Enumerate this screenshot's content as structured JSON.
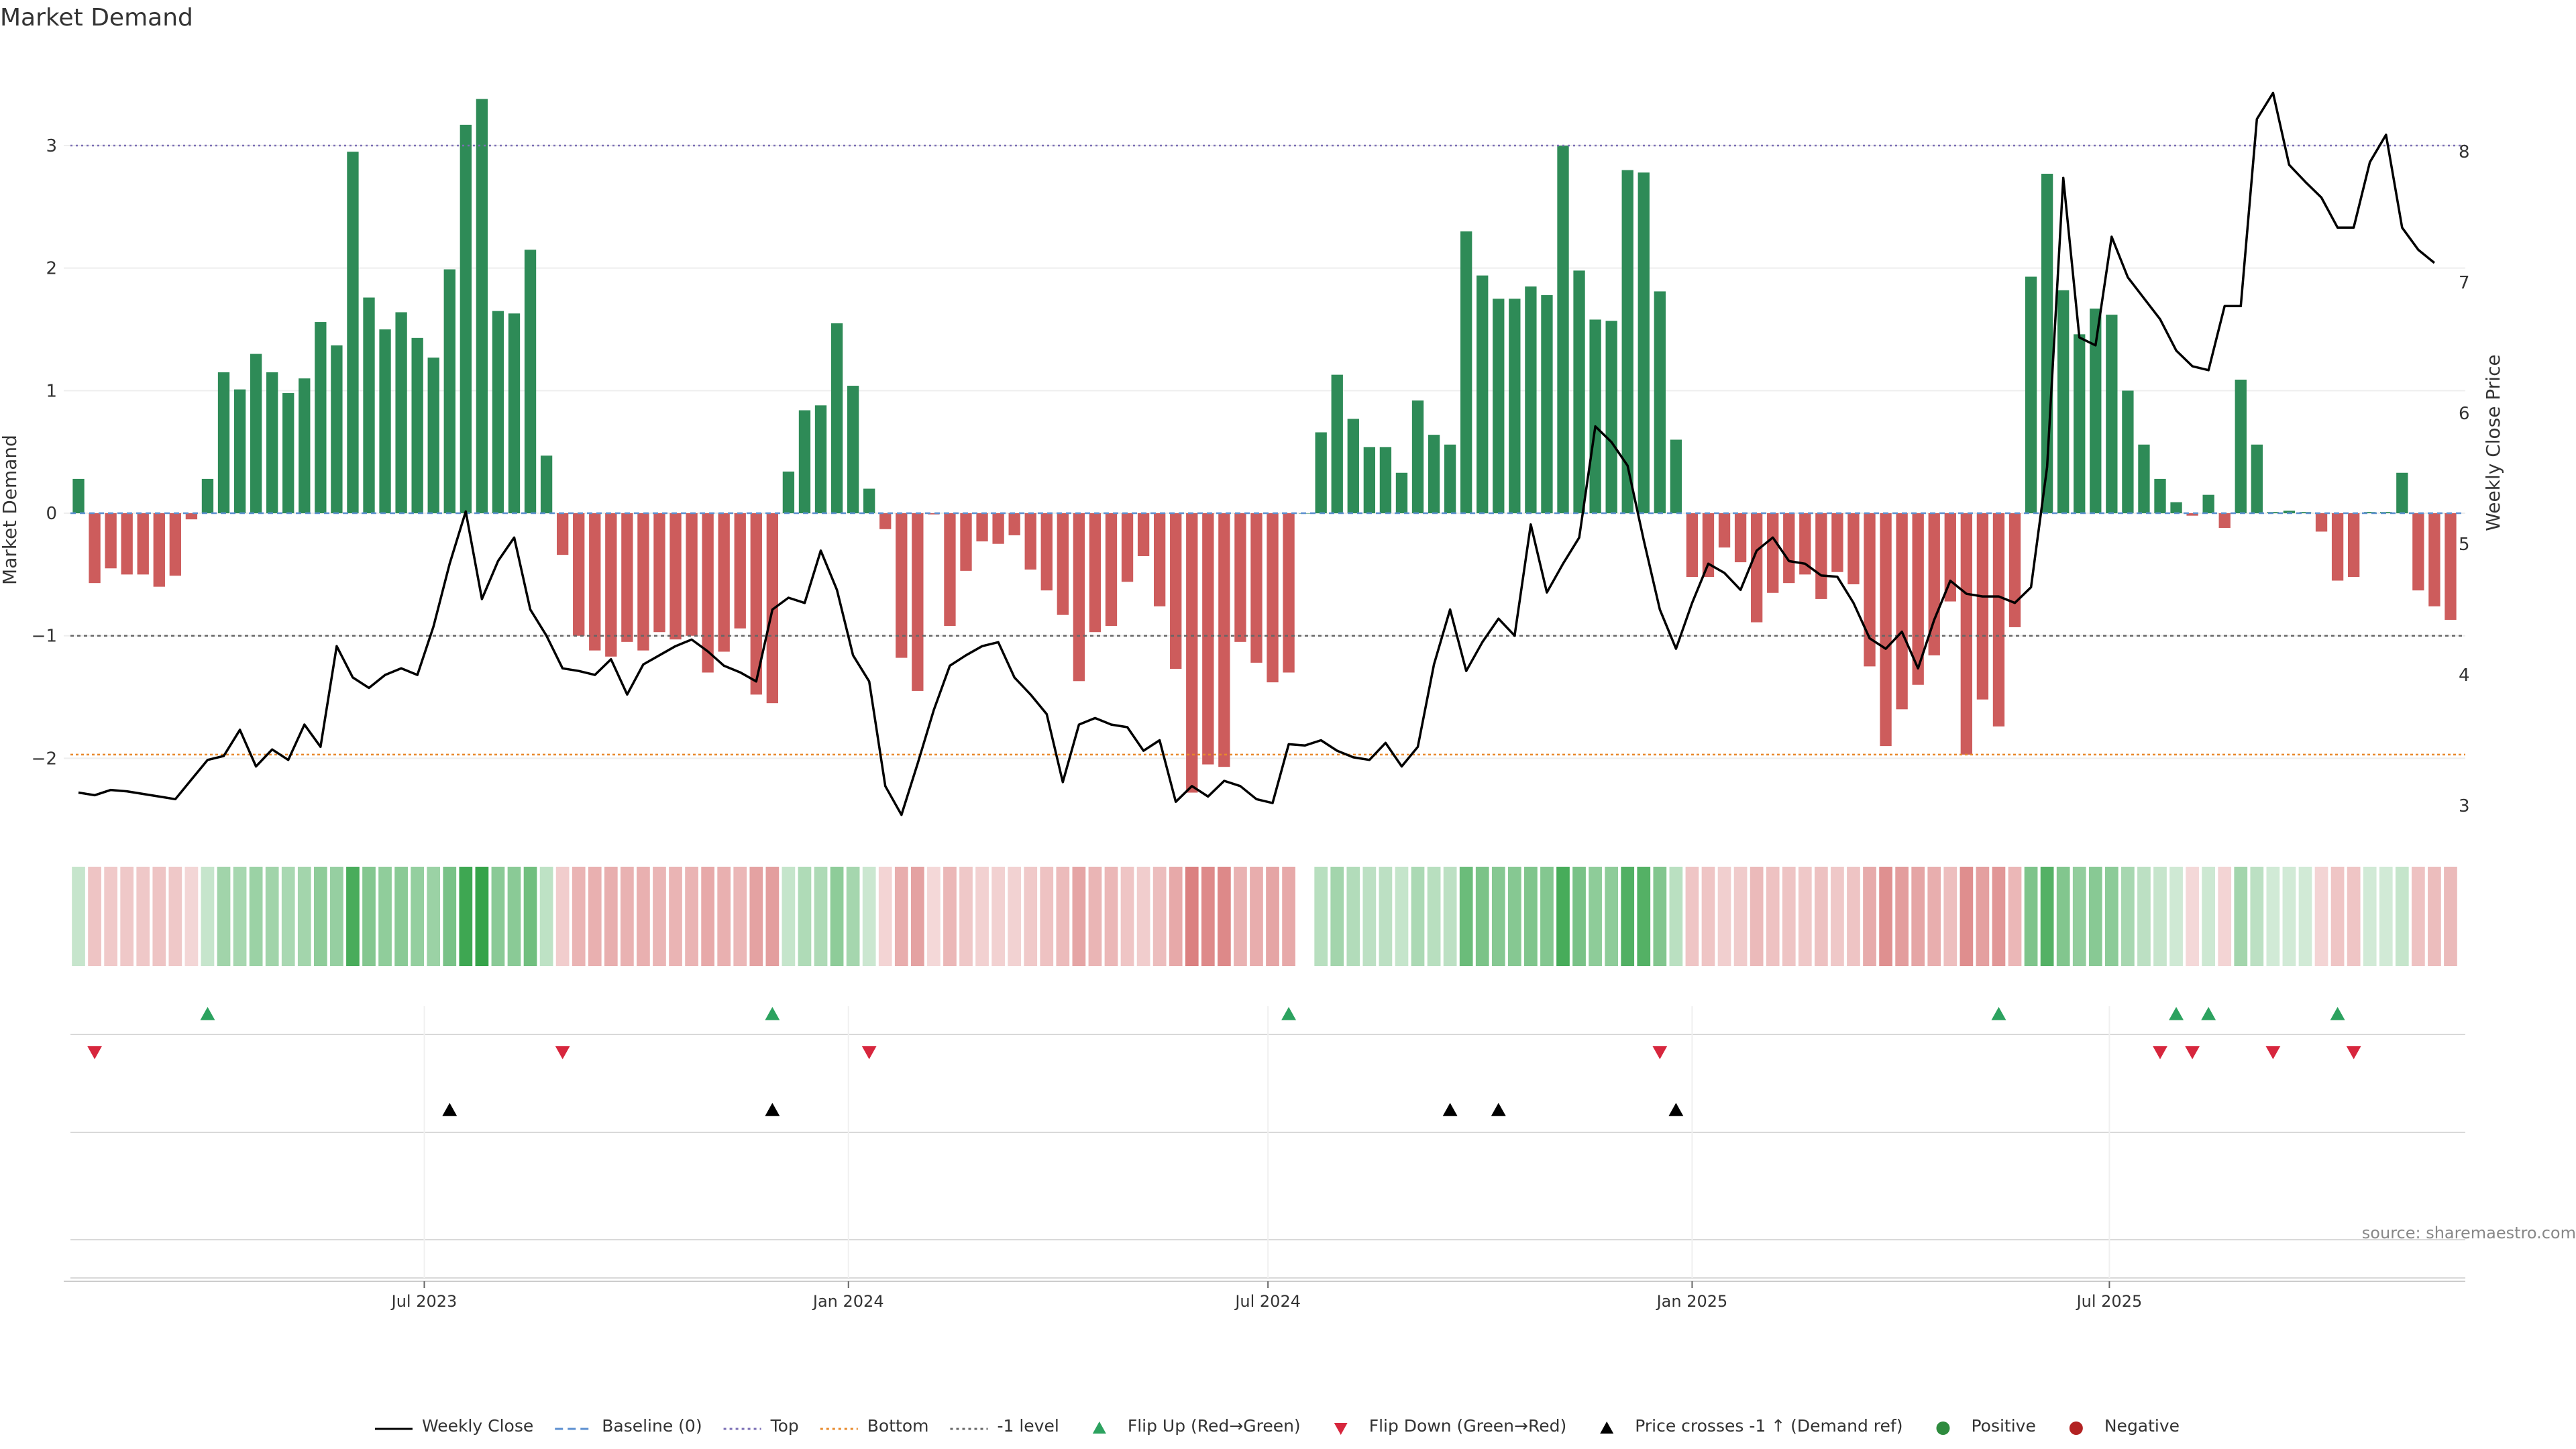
{
  "chart_data": {
    "type": "bar",
    "title": "Market Demand",
    "ylabel": "Market Demand",
    "y2label": "Weekly Close Price",
    "ylim": [
      -2.6,
      3.75
    ],
    "y2lim": [
      2.8,
      8.75
    ],
    "yticks": [
      -2,
      -1,
      0,
      1,
      2,
      3
    ],
    "y2ticks": [
      3,
      4,
      5,
      6,
      7,
      8
    ],
    "x_start": "2023-02-01",
    "x_interval_days": 7,
    "xticks": [
      {
        "date": "2023-07-01",
        "label": "Jul 2023"
      },
      {
        "date": "2024-01-01",
        "label": "Jan 2024"
      },
      {
        "date": "2024-07-01",
        "label": "Jul 2024"
      },
      {
        "date": "2025-01-01",
        "label": "Jan 2025"
      },
      {
        "date": "2025-07-01",
        "label": "Jul 2025"
      }
    ],
    "reference_lines": [
      {
        "name": "Top",
        "value": 3.0,
        "color": "#7b6fb5",
        "dash": "3,5"
      },
      {
        "name": "-1 level",
        "value": -1.0,
        "color": "#666666",
        "dash": "5,5"
      },
      {
        "name": "Bottom",
        "value": -1.97,
        "color": "#e8882a",
        "dash": "4,4"
      },
      {
        "name": "Baseline (0)",
        "value": 0,
        "color": "#5b8fd0",
        "dash": "8,6"
      }
    ],
    "series": [
      {
        "name": "Market Demand",
        "kind": "bar",
        "values": [
          0.28,
          -0.57,
          -0.45,
          -0.5,
          -0.5,
          -0.6,
          -0.51,
          -0.05,
          0.28,
          1.15,
          1.01,
          1.3,
          1.15,
          0.98,
          1.1,
          1.56,
          1.37,
          2.95,
          1.76,
          1.5,
          1.64,
          1.43,
          1.27,
          1.99,
          3.17,
          3.38,
          1.65,
          1.63,
          2.15,
          0.47,
          -0.34,
          -1.0,
          -1.12,
          -1.17,
          -1.05,
          -1.12,
          -0.97,
          -1.03,
          -1.0,
          -1.3,
          -1.13,
          -0.94,
          -1.48,
          -1.55,
          0.34,
          0.84,
          0.88,
          1.55,
          1.04,
          0.2,
          -0.13,
          -1.18,
          -1.45,
          -0.01,
          -0.92,
          -0.47,
          -0.23,
          -0.25,
          -0.18,
          -0.46,
          -0.63,
          -0.83,
          -1.37,
          -0.97,
          -0.92,
          -0.56,
          -0.35,
          -0.76,
          -1.27,
          -2.28,
          -2.05,
          -2.07,
          -1.05,
          -1.22,
          -1.38,
          -1.3,
          0,
          0.66,
          1.13,
          0.77,
          0.54,
          0.54,
          0.33,
          0.92,
          0.64,
          0.56,
          2.3,
          1.94,
          1.75,
          1.75,
          1.85,
          1.78,
          3.0,
          1.98,
          1.58,
          1.57,
          2.8,
          2.78,
          1.81,
          0.6,
          -0.52,
          -0.52,
          -0.28,
          -0.4,
          -0.89,
          -0.65,
          -0.57,
          -0.5,
          -0.7,
          -0.48,
          -0.58,
          -1.25,
          -1.9,
          -1.6,
          -1.4,
          -1.16,
          -0.72,
          -1.97,
          -1.52,
          -1.74,
          -0.93,
          1.93,
          2.77,
          1.82,
          1.46,
          1.67,
          1.62,
          1.0,
          0.56,
          0.28,
          0.09,
          -0.02,
          0.15,
          -0.12,
          1.09,
          0.56,
          0.01,
          0.02,
          0.01,
          -0.15,
          -0.55,
          -0.52,
          0.01,
          0.01,
          0.33,
          -0.63,
          -0.76,
          -0.87
        ]
      },
      {
        "name": "Weekly Close",
        "kind": "line",
        "axis": "right",
        "values": [
          3.1,
          3.08,
          3.12,
          3.11,
          3.09,
          3.07,
          3.05,
          3.2,
          3.35,
          3.38,
          3.58,
          3.3,
          3.43,
          3.35,
          3.62,
          3.45,
          4.22,
          3.98,
          3.9,
          4.0,
          4.05,
          4.0,
          4.37,
          4.85,
          5.25,
          4.58,
          4.87,
          5.05,
          4.5,
          4.3,
          4.05,
          4.03,
          4.0,
          4.12,
          3.85,
          4.08,
          4.15,
          4.22,
          4.27,
          4.18,
          4.07,
          4.02,
          3.95,
          4.5,
          4.59,
          4.55,
          4.95,
          4.65,
          4.15,
          3.95,
          3.15,
          2.93,
          3.32,
          3.73,
          4.07,
          4.15,
          4.22,
          4.25,
          3.98,
          3.85,
          3.7,
          3.18,
          3.62,
          3.67,
          3.62,
          3.6,
          3.42,
          3.5,
          3.03,
          3.15,
          3.07,
          3.19,
          3.15,
          3.05,
          3.02,
          3.47,
          3.46,
          3.5,
          3.42,
          3.37,
          3.35,
          3.48,
          3.3,
          3.45,
          4.08,
          4.5,
          4.03,
          4.25,
          4.43,
          4.3,
          5.15,
          4.63,
          4.85,
          5.05,
          5.9,
          5.78,
          5.6,
          5.03,
          4.5,
          4.2,
          4.55,
          4.85,
          4.78,
          4.65,
          4.95,
          5.05,
          4.87,
          4.85,
          4.76,
          4.75,
          4.55,
          4.28,
          4.2,
          4.33,
          4.05,
          4.42,
          4.72,
          4.62,
          4.6,
          4.6,
          4.55,
          4.67,
          5.59,
          7.8,
          6.58,
          6.52,
          7.35,
          7.04,
          6.88,
          6.72,
          6.48,
          6.36,
          6.33,
          6.82,
          6.82,
          8.25,
          8.45,
          7.9,
          7.77,
          7.65,
          7.42,
          7.42,
          7.92,
          8.13,
          7.42,
          7.25,
          7.15
        ]
      }
    ],
    "strip": {
      "name": "Demand intensity strip",
      "colors": {
        "positive": "#2ea043",
        "negative": "#cc4c4c"
      }
    },
    "events": {
      "flip_up": [
        8,
        43,
        75,
        119,
        130,
        132,
        140
      ],
      "flip_down": [
        1,
        30,
        49,
        98,
        129,
        131,
        136,
        141
      ],
      "price_cross": [
        23,
        43,
        85,
        88,
        99
      ],
      "colors": {
        "flip_up": "#2ca25f",
        "flip_down": "#d7263d",
        "price_cross": "#000000"
      }
    },
    "legend": {
      "position": "bottom-center",
      "entries": [
        {
          "label": "Weekly Close",
          "symbol": "line",
          "color": "#000000"
        },
        {
          "label": "Baseline (0)",
          "symbol": "dash",
          "color": "#5b8fd0"
        },
        {
          "label": "Top",
          "symbol": "dot",
          "color": "#7b6fb5"
        },
        {
          "label": "Bottom",
          "symbol": "dot",
          "color": "#e8882a"
        },
        {
          "label": "-1 level",
          "symbol": "dot",
          "color": "#666666"
        },
        {
          "label": "Flip Up (Red→Green)",
          "symbol": "tri-up",
          "color": "#2ca25f"
        },
        {
          "label": "Flip Down (Green→Red)",
          "symbol": "tri-down",
          "color": "#d7263d"
        },
        {
          "label": "Price crosses -1 ↑ (Demand ref)",
          "symbol": "tri-up",
          "color": "#000000"
        },
        {
          "label": "Positive",
          "symbol": "circle",
          "color": "#2e8b3e"
        },
        {
          "label": "Negative",
          "symbol": "circle",
          "color": "#b22222"
        }
      ]
    },
    "source": "source: sharemaestro.com",
    "colors": {
      "positive_bar": "#2e8b57",
      "negative_bar": "#cd5c5c",
      "price_line": "#000000"
    }
  }
}
